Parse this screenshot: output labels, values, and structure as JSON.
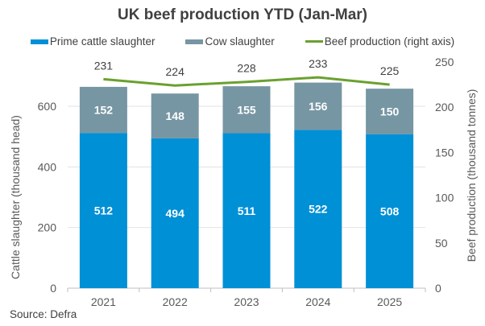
{
  "chart_data": {
    "type": "bar",
    "subtype": "stacked bar with line on secondary axis",
    "title": "UK beef production YTD (Jan-Mar)",
    "categories": [
      "2021",
      "2022",
      "2023",
      "2024",
      "2025"
    ],
    "series": [
      {
        "name": "Prime cattle slaughter",
        "type": "bar",
        "axis": "left",
        "color": "#0090D6",
        "values": [
          512,
          494,
          511,
          522,
          508
        ]
      },
      {
        "name": "Cow slaughter",
        "type": "bar",
        "axis": "left",
        "color": "#7796A3",
        "values": [
          152,
          148,
          155,
          156,
          150
        ]
      },
      {
        "name": "Beef production (right axis)",
        "type": "line",
        "axis": "right",
        "color": "#6AA12F",
        "values": [
          231,
          224,
          228,
          233,
          225
        ]
      }
    ],
    "xlabel": "",
    "ylabel": "Cattle slaughter (thousand head)",
    "ylabel_right": "Beef production (thousand tonnes)",
    "ylim": [
      0,
      700
    ],
    "ylim_right": [
      0,
      250
    ],
    "yticks": [
      0,
      200,
      400,
      600
    ],
    "yticks_right": [
      0,
      50,
      100,
      150,
      200,
      250
    ],
    "grid": true,
    "legend_position": "top"
  },
  "legend": {
    "items": [
      "Prime cattle slaughter",
      "Cow slaughter",
      "Beef production (right axis)"
    ]
  },
  "source": "Source: Defra"
}
